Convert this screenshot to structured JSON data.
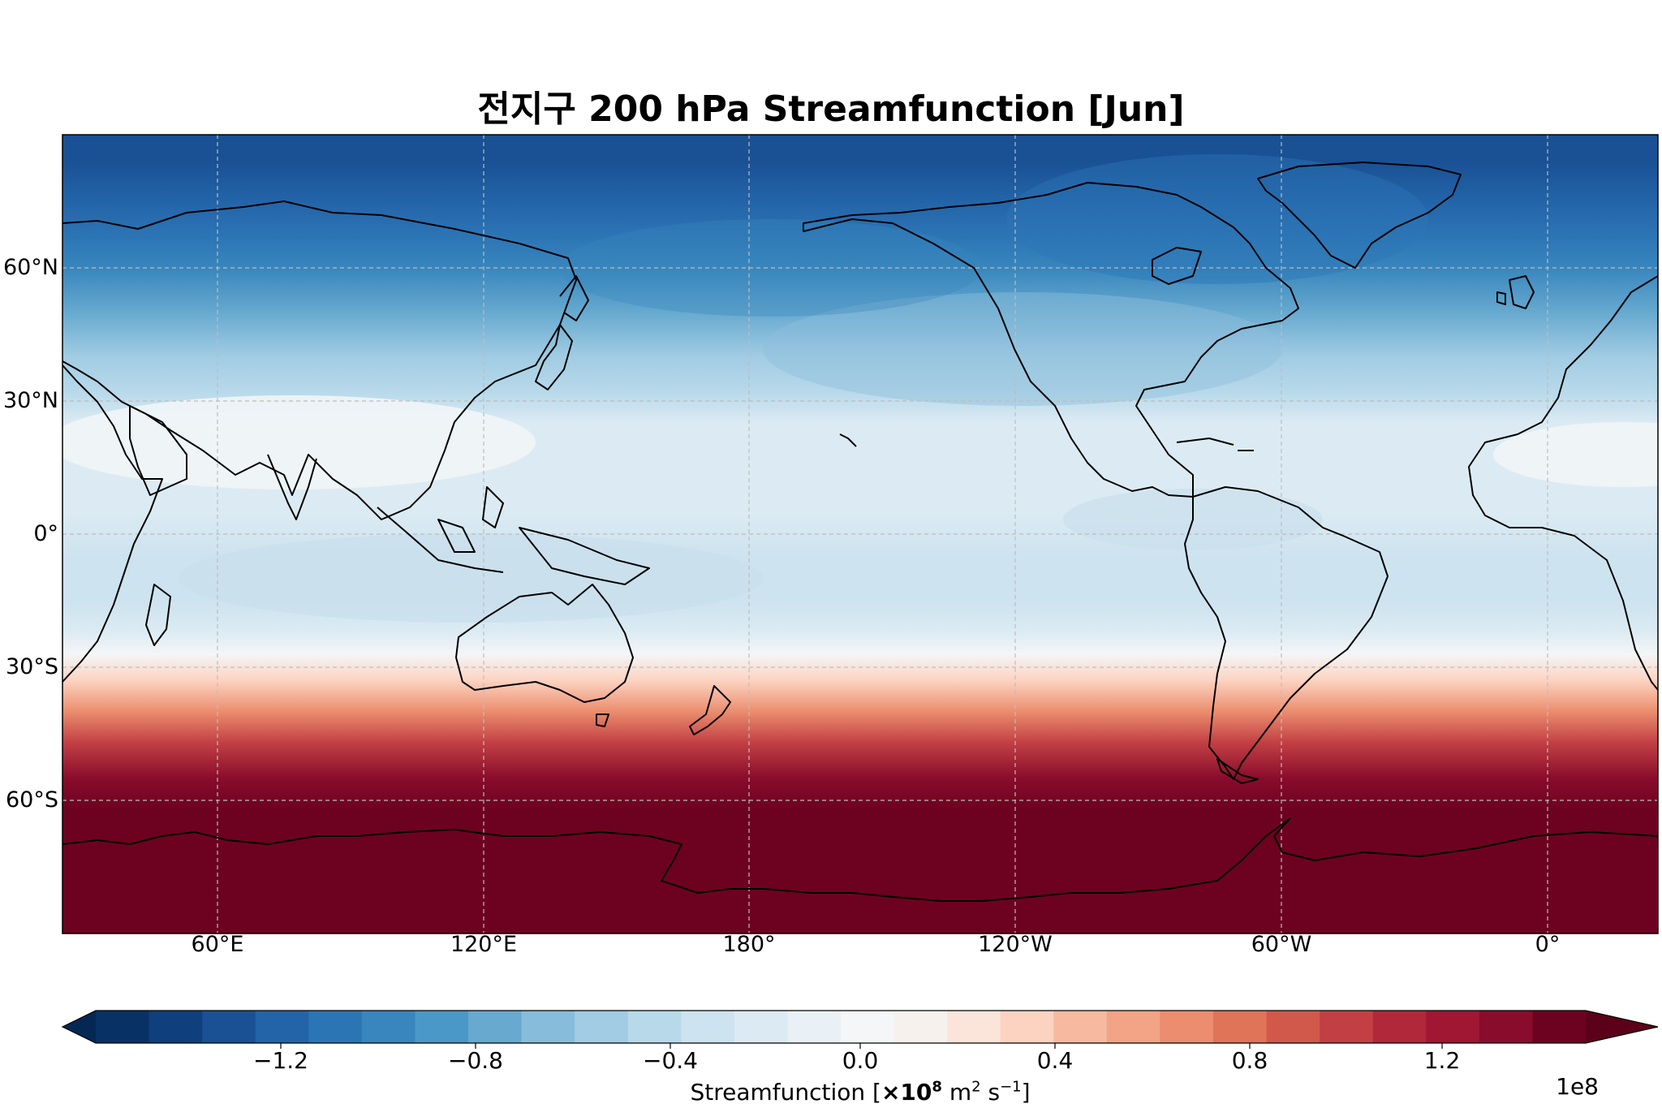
{
  "title": "전지구 200 hPa Streamfunction [Jun]",
  "map": {
    "projection": "PlateCarree",
    "central_longitude": "160°E",
    "extent_lon": [
      20,
      300
    ],
    "extent_lat": [
      -90,
      90
    ],
    "coastlines": true,
    "gridlines": "dashed grey"
  },
  "lat_ticks": [
    "60°N",
    "30°N",
    "0°",
    "30°S",
    "60°S"
  ],
  "lon_ticks": [
    "60°E",
    "120°E",
    "180°",
    "120°W",
    "60°W",
    "0°"
  ],
  "colormap": "RdBu_r",
  "colorbar": {
    "ticks": [
      "−1.2",
      "−0.8",
      "−0.4",
      "0.0",
      "0.4",
      "0.8",
      "1.2"
    ],
    "label_prefix": "Streamfunction [",
    "label_mult": "×10",
    "label_exp": "8",
    "label_m": " m",
    "label_m_exp": "2",
    "label_s": " s",
    "label_s_exp": "−1",
    "label_suffix": "]",
    "offset": "1e8",
    "extend": "both"
  },
  "colors": {
    "levels": [
      "#083266",
      "#0f3f7c",
      "#195194",
      "#2364a8",
      "#2c75b5",
      "#3886bd",
      "#4a98c7",
      "#67a9cf",
      "#87bddb",
      "#a1cce3",
      "#b8d9ea",
      "#cde3ef",
      "#dcebf3",
      "#e9f1f6",
      "#f4f6f7",
      "#f7f1ee",
      "#fbe4da",
      "#fcd3c1",
      "#f7b99f",
      "#f3a386",
      "#eb8d6e",
      "#df7459",
      "#d0594b",
      "#c24044",
      "#b1283a",
      "#9f1733",
      "#8a0c2c",
      "#6d0220"
    ],
    "under": "#052754",
    "over": "#5c0019"
  },
  "field": {
    "lat_profile": [
      [
        84,
        -1.12
      ],
      [
        75,
        -1.06
      ],
      [
        67,
        -0.98
      ],
      [
        60,
        -0.85
      ],
      [
        50,
        -0.69
      ],
      [
        40,
        -0.5
      ],
      [
        32,
        -0.34
      ],
      [
        25,
        -0.18
      ],
      [
        15,
        -0.16
      ],
      [
        5,
        -0.2
      ],
      [
        -5,
        -0.23
      ],
      [
        -15,
        -0.22
      ],
      [
        -22,
        -0.13
      ],
      [
        -27,
        0.04
      ],
      [
        -33,
        0.3
      ],
      [
        -40,
        0.62
      ],
      [
        -47,
        0.95
      ],
      [
        -55,
        1.22
      ],
      [
        -62,
        1.39
      ],
      [
        -70,
        1.48
      ],
      [
        -90,
        1.52
      ]
    ]
  }
}
